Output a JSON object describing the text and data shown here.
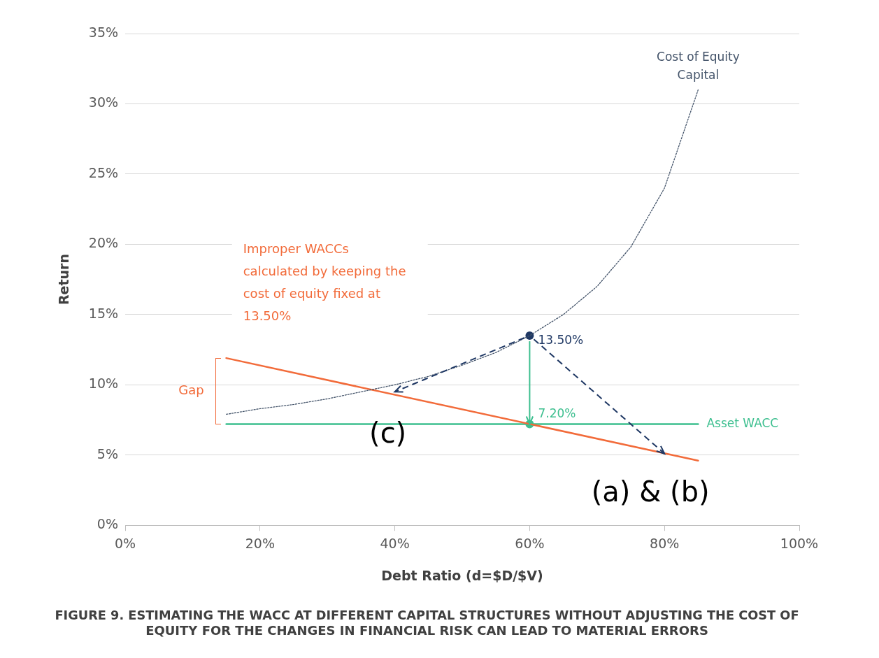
{
  "chart_data": {
    "type": "line",
    "title": "FIGURE 9. ESTIMATING THE WACC AT DIFFERENT CAPITAL STRUCTURES WITHOUT ADJUSTING THE COST OF EQUITY FOR THE CHANGES IN FINANCIAL RISK CAN LEAD TO MATERIAL ERRORS",
    "xlabel": "Debt Ratio (d=$D/$V)",
    "ylabel": "Return",
    "xlim": [
      0,
      100
    ],
    "xticks": [
      {
        "value": 0,
        "label": "0%"
      },
      {
        "value": 20,
        "label": "20%"
      },
      {
        "value": 40,
        "label": "40%"
      },
      {
        "value": 60,
        "label": "60%"
      },
      {
        "value": 80,
        "label": "80%"
      },
      {
        "value": 100,
        "label": "100%"
      }
    ],
    "ylim": [
      0,
      35
    ],
    "yticks": [
      {
        "value": 0,
        "label": "0%"
      },
      {
        "value": 5,
        "label": "5%"
      },
      {
        "value": 10,
        "label": "10%"
      },
      {
        "value": 15,
        "label": "15%"
      },
      {
        "value": 20,
        "label": "20%"
      },
      {
        "value": 25,
        "label": "25%"
      },
      {
        "value": 30,
        "label": "30%"
      },
      {
        "value": 35,
        "label": "35%"
      }
    ],
    "grid": "y",
    "legend": false,
    "series": [
      {
        "name": "Cost of Equity Capital",
        "color": "#44546a",
        "line_style": "dotted",
        "x": [
          15,
          20,
          25,
          30,
          35,
          40,
          45,
          50,
          55,
          60,
          65,
          70,
          75,
          80,
          85
        ],
        "values": [
          7.9,
          8.3,
          8.6,
          9.0,
          9.5,
          10.0,
          10.6,
          11.4,
          12.3,
          13.5,
          15.0,
          17.0,
          19.8,
          24.0,
          31.0
        ]
      },
      {
        "color": "#f26b3a",
        "line_style": "solid",
        "x": [
          15,
          85
        ],
        "values": [
          11.9,
          4.6
        ]
      },
      {
        "name": "Asset WACC",
        "color": "#3dbf8f",
        "line_style": "solid",
        "x": [
          15,
          85
        ],
        "values": [
          7.2,
          7.2
        ]
      },
      {
        "type": "scatter",
        "marker": "circle",
        "x": [
          60,
          60
        ],
        "values": [
          13.5,
          7.2
        ],
        "colors": [
          "#1f3864",
          "#3dbf8f"
        ]
      }
    ],
    "annotations": [
      "Improper WACCs calculated by keeping the cost of equity fixed at 13.50%",
      "Gap",
      {
        "text": "13.50%",
        "x": 60,
        "y": 13.5
      },
      {
        "text": "7.20%",
        "x": 60,
        "y": 7.2
      },
      {
        "text": "(c)",
        "x": 40,
        "y": 9.5
      },
      {
        "text": "(a) & (b)",
        "x": 80,
        "y": 5.1
      }
    ]
  }
}
